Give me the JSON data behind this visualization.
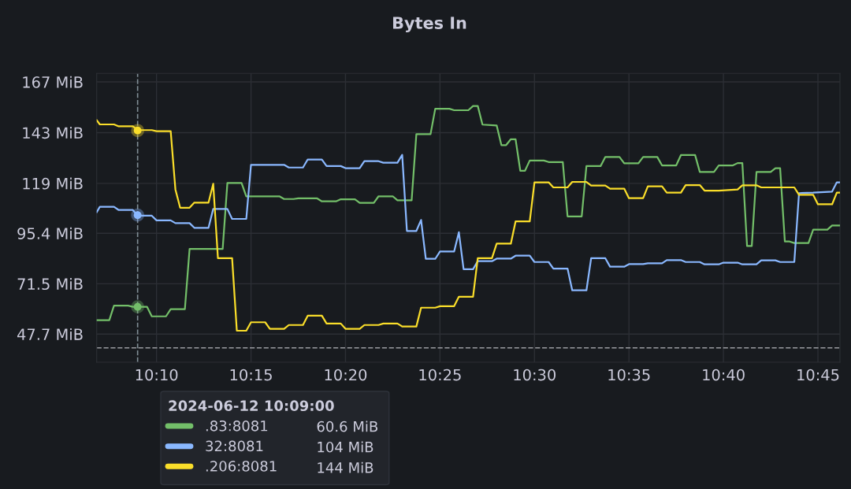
{
  "chart_data": {
    "type": "line",
    "title": "Bytes In",
    "series": [
      {
        "name": ".83:8081",
        "color": "#73bf69",
        "x": [
          "2024-06-12T10:06:50",
          "2024-06-12T10:07:30",
          "2024-06-12T10:07:45",
          "2024-06-12T10:08:30",
          "2024-06-12T10:08:45",
          "2024-06-12T10:09:30",
          "2024-06-12T10:09:45",
          "2024-06-12T10:10:30",
          "2024-06-12T10:10:45",
          "2024-06-12T10:11:30",
          "2024-06-12T10:11:45",
          "2024-06-12T10:13:30",
          "2024-06-12T10:13:45",
          "2024-06-12T10:14:30",
          "2024-06-12T10:14:45",
          "2024-06-12T10:16:30",
          "2024-06-12T10:16:45",
          "2024-06-12T10:17:15",
          "2024-06-12T10:17:30",
          "2024-06-12T10:18:30",
          "2024-06-12T10:18:45",
          "2024-06-12T10:19:30",
          "2024-06-12T10:19:45",
          "2024-06-12T10:20:30",
          "2024-06-12T10:20:45",
          "2024-06-12T10:21:30",
          "2024-06-12T10:21:45",
          "2024-06-12T10:22:30",
          "2024-06-12T10:22:45",
          "2024-06-12T10:23:30",
          "2024-06-12T10:23:45",
          "2024-06-12T10:24:30",
          "2024-06-12T10:24:45",
          "2024-06-12T10:25:30",
          "2024-06-12T10:25:45",
          "2024-06-12T10:26:30",
          "2024-06-12T10:26:45",
          "2024-06-12T10:27:00",
          "2024-06-12T10:27:15",
          "2024-06-12T10:28:00",
          "2024-06-12T10:28:15",
          "2024-06-12T10:28:30",
          "2024-06-12T10:28:45",
          "2024-06-12T10:29:00",
          "2024-06-12T10:29:15",
          "2024-06-12T10:29:30",
          "2024-06-12T10:29:45",
          "2024-06-12T10:30:30",
          "2024-06-12T10:30:45",
          "2024-06-12T10:31:30",
          "2024-06-12T10:31:45",
          "2024-06-12T10:32:30",
          "2024-06-12T10:32:45",
          "2024-06-12T10:33:30",
          "2024-06-12T10:33:45",
          "2024-06-12T10:34:30",
          "2024-06-12T10:34:45",
          "2024-06-12T10:35:30",
          "2024-06-12T10:35:45",
          "2024-06-12T10:36:30",
          "2024-06-12T10:36:45",
          "2024-06-12T10:37:30",
          "2024-06-12T10:37:45",
          "2024-06-12T10:38:30",
          "2024-06-12T10:38:45",
          "2024-06-12T10:39:30",
          "2024-06-12T10:39:45",
          "2024-06-12T10:40:30",
          "2024-06-12T10:40:45",
          "2024-06-12T10:41:00",
          "2024-06-12T10:41:15",
          "2024-06-12T10:41:30",
          "2024-06-12T10:41:45",
          "2024-06-12T10:42:30",
          "2024-06-12T10:42:45",
          "2024-06-12T10:43:00",
          "2024-06-12T10:43:15",
          "2024-06-12T10:43:30",
          "2024-06-12T10:43:45",
          "2024-06-12T10:44:30",
          "2024-06-12T10:44:45",
          "2024-06-12T10:45:30",
          "2024-06-12T10:45:45",
          "2024-06-12T10:46:10"
        ],
        "values": [
          54.3,
          54.3,
          61.2,
          61.2,
          60.6,
          60.6,
          56.1,
          56.1,
          59.5,
          59.5,
          88.0,
          88.0,
          119.2,
          119.2,
          112.9,
          112.9,
          111.6,
          111.6,
          111.9,
          111.9,
          110.5,
          110.5,
          111.5,
          111.5,
          109.8,
          109.8,
          112.9,
          112.9,
          111.0,
          111.0,
          142.3,
          142.3,
          154.3,
          154.3,
          153.6,
          153.6,
          155.6,
          155.6,
          146.8,
          146.4,
          137.1,
          137.1,
          139.9,
          139.9,
          125.0,
          125.0,
          129.8,
          129.8,
          129.1,
          129.1,
          103.4,
          103.4,
          127.2,
          127.2,
          131.5,
          131.5,
          128.5,
          128.5,
          131.5,
          131.5,
          127.5,
          127.5,
          132.4,
          132.4,
          124.4,
          124.4,
          127.5,
          127.5,
          128.6,
          128.6,
          89.4,
          89.4,
          124.4,
          124.4,
          126.2,
          126.2,
          91.5,
          91.5,
          90.8,
          90.8,
          97.1,
          97.1,
          99.1,
          99.1
        ]
      },
      {
        "name": "32:8081",
        "color": "#8ab8ff",
        "x": [
          "2024-06-12T10:06:50",
          "2024-06-12T10:07:00",
          "2024-06-12T10:07:45",
          "2024-06-12T10:08:00",
          "2024-06-12T10:08:45",
          "2024-06-12T10:09:00",
          "2024-06-12T10:09:45",
          "2024-06-12T10:10:00",
          "2024-06-12T10:10:45",
          "2024-06-12T10:11:00",
          "2024-06-12T10:11:45",
          "2024-06-12T10:12:00",
          "2024-06-12T10:12:45",
          "2024-06-12T10:13:00",
          "2024-06-12T10:13:45",
          "2024-06-12T10:14:00",
          "2024-06-12T10:14:45",
          "2024-06-12T10:15:00",
          "2024-06-12T10:16:45",
          "2024-06-12T10:17:00",
          "2024-06-12T10:17:45",
          "2024-06-12T10:18:00",
          "2024-06-12T10:18:45",
          "2024-06-12T10:19:00",
          "2024-06-12T10:19:45",
          "2024-06-12T10:20:00",
          "2024-06-12T10:20:45",
          "2024-06-12T10:21:00",
          "2024-06-12T10:21:45",
          "2024-06-12T10:22:00",
          "2024-06-12T10:22:45",
          "2024-06-12T10:23:00",
          "2024-06-12T10:23:15",
          "2024-06-12T10:23:45",
          "2024-06-12T10:24:00",
          "2024-06-12T10:24:15",
          "2024-06-12T10:24:45",
          "2024-06-12T10:25:00",
          "2024-06-12T10:25:45",
          "2024-06-12T10:26:00",
          "2024-06-12T10:26:15",
          "2024-06-12T10:26:45",
          "2024-06-12T10:27:00",
          "2024-06-12T10:27:45",
          "2024-06-12T10:28:00",
          "2024-06-12T10:28:45",
          "2024-06-12T10:29:00",
          "2024-06-12T10:29:45",
          "2024-06-12T10:30:00",
          "2024-06-12T10:30:45",
          "2024-06-12T10:31:00",
          "2024-06-12T10:31:45",
          "2024-06-12T10:32:00",
          "2024-06-12T10:32:45",
          "2024-06-12T10:33:00",
          "2024-06-12T10:33:45",
          "2024-06-12T10:34:00",
          "2024-06-12T10:34:45",
          "2024-06-12T10:35:00",
          "2024-06-12T10:35:45",
          "2024-06-12T10:36:00",
          "2024-06-12T10:36:45",
          "2024-06-12T10:37:00",
          "2024-06-12T10:37:45",
          "2024-06-12T10:38:00",
          "2024-06-12T10:38:45",
          "2024-06-12T10:39:00",
          "2024-06-12T10:39:45",
          "2024-06-12T10:40:00",
          "2024-06-12T10:40:45",
          "2024-06-12T10:41:00",
          "2024-06-12T10:41:45",
          "2024-06-12T10:42:00",
          "2024-06-12T10:42:45",
          "2024-06-12T10:43:00",
          "2024-06-12T10:43:45",
          "2024-06-12T10:44:00",
          "2024-06-12T10:44:45",
          "2024-06-12T10:45:45",
          "2024-06-12T10:46:00",
          "2024-06-12T10:46:10"
        ],
        "values": [
          105.4,
          107.9,
          107.9,
          106.4,
          106.4,
          103.7,
          103.7,
          101.5,
          101.5,
          100.2,
          100.2,
          98.0,
          98.0,
          106.9,
          106.9,
          102.2,
          102.2,
          127.8,
          127.8,
          126.5,
          126.5,
          130.3,
          130.3,
          127.2,
          127.2,
          126.2,
          126.2,
          129.5,
          129.5,
          128.8,
          128.8,
          132.5,
          96.5,
          96.5,
          101.7,
          83.3,
          83.3,
          86.8,
          86.8,
          95.9,
          78.4,
          78.4,
          82.2,
          82.2,
          83.4,
          83.4,
          84.8,
          84.8,
          81.8,
          81.8,
          78.7,
          78.7,
          68.4,
          68.4,
          83.6,
          83.6,
          79.6,
          79.6,
          80.8,
          80.8,
          81.2,
          81.2,
          82.7,
          82.7,
          81.8,
          81.8,
          80.7,
          80.7,
          81.5,
          81.5,
          80.7,
          80.7,
          82.6,
          82.6,
          81.8,
          81.8,
          114.4,
          114.6,
          115.1,
          119.5,
          119.5
        ]
      },
      {
        "name": ".206:8081",
        "color": "#fade2a",
        "x": [
          "2024-06-12T10:06:50",
          "2024-06-12T10:07:00",
          "2024-06-12T10:07:45",
          "2024-06-12T10:08:00",
          "2024-06-12T10:08:45",
          "2024-06-12T10:09:00",
          "2024-06-12T10:09:45",
          "2024-06-12T10:10:00",
          "2024-06-12T10:10:45",
          "2024-06-12T10:11:00",
          "2024-06-12T10:11:15",
          "2024-06-12T10:11:45",
          "2024-06-12T10:12:00",
          "2024-06-12T10:12:45",
          "2024-06-12T10:13:00",
          "2024-06-12T10:13:15",
          "2024-06-12T10:14:00",
          "2024-06-12T10:14:15",
          "2024-06-12T10:14:45",
          "2024-06-12T10:15:00",
          "2024-06-12T10:15:45",
          "2024-06-12T10:16:00",
          "2024-06-12T10:16:45",
          "2024-06-12T10:17:00",
          "2024-06-12T10:17:45",
          "2024-06-12T10:18:00",
          "2024-06-12T10:18:45",
          "2024-06-12T10:19:00",
          "2024-06-12T10:19:45",
          "2024-06-12T10:20:00",
          "2024-06-12T10:20:45",
          "2024-06-12T10:21:00",
          "2024-06-12T10:21:45",
          "2024-06-12T10:22:00",
          "2024-06-12T10:22:45",
          "2024-06-12T10:23:00",
          "2024-06-12T10:23:45",
          "2024-06-12T10:24:00",
          "2024-06-12T10:24:45",
          "2024-06-12T10:25:00",
          "2024-06-12T10:25:45",
          "2024-06-12T10:26:00",
          "2024-06-12T10:26:45",
          "2024-06-12T10:27:00",
          "2024-06-12T10:27:45",
          "2024-06-12T10:28:00",
          "2024-06-12T10:28:45",
          "2024-06-12T10:29:00",
          "2024-06-12T10:29:45",
          "2024-06-12T10:30:00",
          "2024-06-12T10:30:45",
          "2024-06-12T10:31:00",
          "2024-06-12T10:31:45",
          "2024-06-12T10:32:00",
          "2024-06-12T10:32:45",
          "2024-06-12T10:33:00",
          "2024-06-12T10:33:45",
          "2024-06-12T10:34:00",
          "2024-06-12T10:34:45",
          "2024-06-12T10:35:00",
          "2024-06-12T10:35:45",
          "2024-06-12T10:36:00",
          "2024-06-12T10:36:45",
          "2024-06-12T10:37:00",
          "2024-06-12T10:37:45",
          "2024-06-12T10:38:00",
          "2024-06-12T10:38:45",
          "2024-06-12T10:39:00",
          "2024-06-12T10:39:45",
          "2024-06-12T10:40:45",
          "2024-06-12T10:41:00",
          "2024-06-12T10:41:45",
          "2024-06-12T10:42:00",
          "2024-06-12T10:43:45",
          "2024-06-12T10:44:00",
          "2024-06-12T10:44:45",
          "2024-06-12T10:45:00",
          "2024-06-12T10:45:45",
          "2024-06-12T10:46:00",
          "2024-06-12T10:46:10"
        ],
        "values": [
          148.9,
          146.9,
          146.9,
          146.0,
          146.0,
          144.2,
          144.2,
          143.7,
          143.7,
          116.1,
          107.5,
          107.5,
          109.9,
          109.9,
          118.8,
          83.6,
          83.6,
          49.3,
          49.3,
          53.3,
          53.3,
          50.2,
          50.2,
          52.0,
          52.0,
          56.4,
          56.4,
          52.7,
          52.7,
          50.2,
          50.2,
          52.0,
          52.0,
          52.7,
          52.7,
          51.3,
          51.3,
          60.2,
          60.2,
          60.9,
          60.9,
          65.4,
          65.4,
          83.6,
          83.6,
          90.5,
          90.5,
          101.0,
          101.0,
          119.5,
          119.5,
          117.1,
          117.1,
          119.7,
          119.7,
          118.0,
          118.0,
          116.5,
          116.5,
          112.0,
          112.0,
          117.6,
          117.6,
          114.6,
          114.6,
          118.2,
          118.2,
          115.6,
          115.6,
          116.1,
          118.1,
          118.1,
          117.1,
          117.1,
          113.6,
          113.6,
          109.1,
          109.1,
          114.6,
          114.6
        ]
      },
      {
        "type": "scatter",
        "marker": "circle",
        "x": [
          "2024-06-12T10:09",
          "2024-06-12T10:09",
          "2024-06-12T10:09"
        ],
        "values": [
          60.6,
          104,
          144
        ],
        "colors": [
          "#73bf69",
          "#8ab8ff",
          "#fade2a"
        ]
      }
    ],
    "xlim": [
      "2024-06-12T10:06:50",
      "2024-06-12T10:46:10"
    ],
    "xticks": [
      {
        "value": "2024-06-12T10:10",
        "label": "10:10"
      },
      {
        "value": "2024-06-12T10:15",
        "label": "10:15"
      },
      {
        "value": "2024-06-12T10:20",
        "label": "10:20"
      },
      {
        "value": "2024-06-12T10:25",
        "label": "10:25"
      },
      {
        "value": "2024-06-12T10:30",
        "label": "10:30"
      },
      {
        "value": "2024-06-12T10:35",
        "label": "10:35"
      },
      {
        "value": "2024-06-12T10:40",
        "label": "10:40"
      },
      {
        "value": "2024-06-12T10:45",
        "label": "10:45"
      }
    ],
    "ylim": [
      34.4,
      171.0
    ],
    "yticks": [
      {
        "value": 47.7,
        "label": "47.7 MiB"
      },
      {
        "value": 71.5,
        "label": "71.5 MiB"
      },
      {
        "value": 95.4,
        "label": "95.4 MiB"
      },
      {
        "value": 119,
        "label": "119 MiB"
      },
      {
        "value": 143,
        "label": "143 MiB"
      },
      {
        "value": 167,
        "label": "167 MiB"
      }
    ],
    "ref_lines": [
      {
        "axis": "x",
        "value": "2024-06-12T10:09",
        "color": "#7f8c94",
        "line_style": "dashed"
      },
      {
        "axis": "y",
        "value": 41.2,
        "color": "#9a9ba0",
        "line_style": "dashed"
      }
    ],
    "grid": true,
    "legend": "bottom",
    "legend_title": "2024-06-12 10:09:00",
    "annotations": [
      "60.6 MiB",
      "104 MiB",
      "144 MiB"
    ]
  }
}
